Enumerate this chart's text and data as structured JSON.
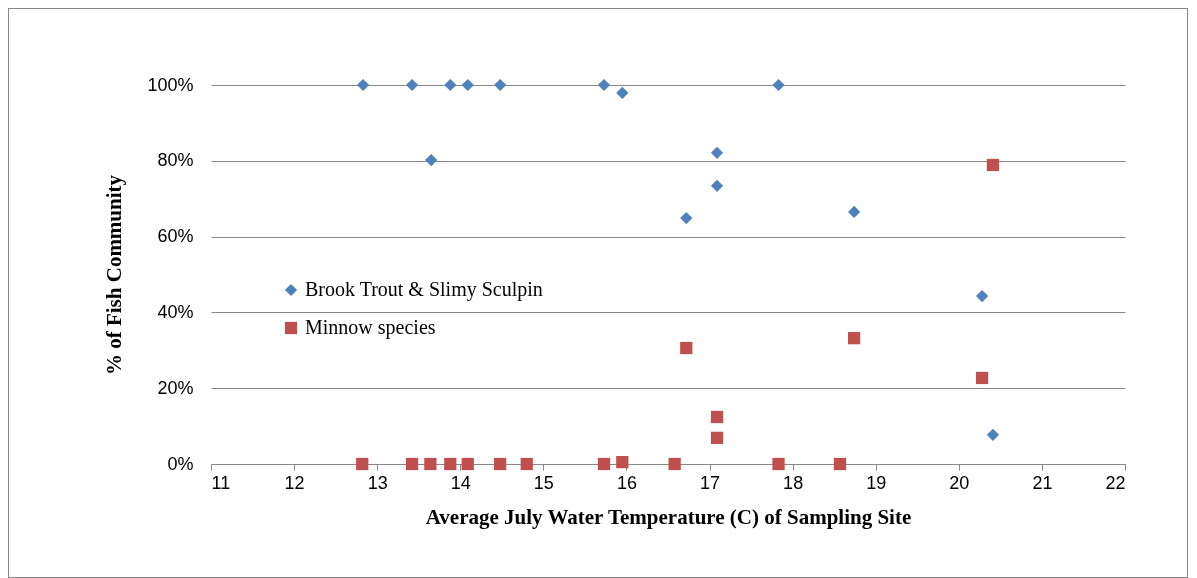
{
  "chart_data": {
    "type": "scatter",
    "xlabel": "Average July Water Temperature (C) of Sampling Site",
    "ylabel": "% of Fish Community",
    "xlim": [
      11,
      22
    ],
    "xticks": [
      11,
      12,
      13,
      14,
      15,
      16,
      17,
      18,
      19,
      20,
      21,
      22
    ],
    "ylim": [
      0,
      100
    ],
    "yticks": [
      {
        "value": 0,
        "label": "0%"
      },
      {
        "value": 20,
        "label": "20%"
      },
      {
        "value": 40,
        "label": "40%"
      },
      {
        "value": 60,
        "label": "60%"
      },
      {
        "value": 80,
        "label": "80%"
      },
      {
        "value": 100,
        "label": "100%"
      }
    ],
    "grid": "y",
    "legend": "left",
    "series": [
      {
        "name": "Brook Trout & Slimy Sculpin",
        "color": "#4f81bd",
        "marker": "diamond",
        "x": [
          12.83,
          13.42,
          13.65,
          13.88,
          14.09,
          14.48,
          15.73,
          15.95,
          16.72,
          17.09,
          17.09,
          17.83,
          18.74,
          20.28,
          20.41
        ],
        "values": [
          100,
          100,
          80.2,
          100,
          100,
          100,
          100,
          97.9,
          64.9,
          82.1,
          73.4,
          100,
          66.5,
          44.3,
          7.7
        ]
      },
      {
        "name": "Minnow species",
        "color": "#c0504d",
        "marker": "square",
        "x": [
          12.82,
          13.42,
          13.64,
          13.88,
          14.09,
          14.48,
          14.8,
          15.73,
          15.95,
          16.58,
          16.72,
          17.09,
          17.09,
          17.83,
          18.57,
          18.74,
          20.28,
          20.41
        ],
        "values": [
          0,
          0,
          0,
          0,
          0,
          0,
          0,
          0,
          0.5,
          0,
          30.6,
          12.4,
          6.9,
          0,
          0,
          33.2,
          22.7,
          78.9
        ]
      }
    ]
  }
}
